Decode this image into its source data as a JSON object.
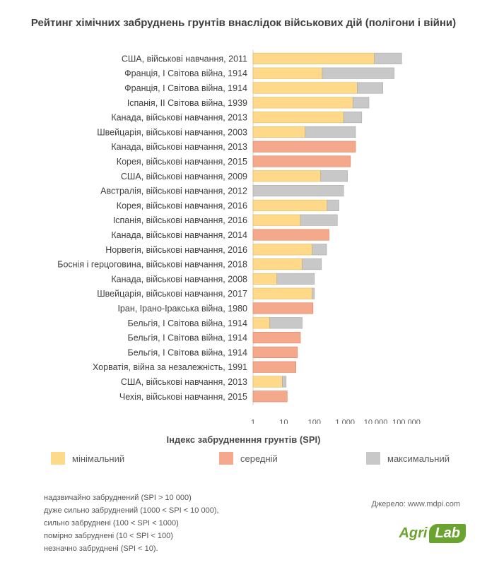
{
  "title": "Рейтинг хімічних забруднень грунтів внаслідок  військових дій (полігони і війни)",
  "colors": {
    "minimal": "#ffd98a",
    "medium": "#f4a98c",
    "maximal": "#c8c8c8",
    "axis": "#d0d0d0"
  },
  "chart_data": {
    "type": "bar",
    "orientation": "horizontal",
    "stacked": true,
    "xscale": "log",
    "xlim": [
      1,
      100000
    ],
    "xticks": [
      "1",
      "10",
      "100",
      "1,000",
      "10,000",
      "100,000"
    ],
    "xlabel": "Індекс забрудненння грунтів (SPI)",
    "categories": [
      "США, військові навчання, 2011",
      "Франція, І Світова війна, 1914",
      "Франція, І Світова війна, 1914",
      "Іспанія, ІІ Світова війна, 1939",
      "Канада, військові навчання, 2013",
      "Швейцарія, військові навчання, 2003",
      "Канада, військові навчання, 2013",
      "Корея, військові навчання, 2015",
      "США, військові навчання, 2009",
      "Австралія, військові навчання, 2012",
      "Корея, військові навчання, 2016",
      "Іспанія, військові навчання, 2016",
      "Канада, військові навчання, 2014",
      "Норвегія, військові навчання, 2016",
      "Боснія і герцоговина, військові навчання, 2018",
      "Канада, військові навчання, 2008",
      "Швейцарія, військові навчання, 2017",
      "Іран, Ірано-Іракська війна, 1980",
      "Бельгія, І Світова війна, 1914",
      "Бельгія, І Світова війна, 1914",
      "Бельгія, І Світова війна, 1914",
      "Хорватія, війна за незалежність, 1991",
      "США, військові навчання, 2013",
      "Чехія, військові навчання, 2015"
    ],
    "series": [
      {
        "name": "мінімальний",
        "values": [
          9000,
          180,
          2500,
          1800,
          900,
          50,
          null,
          null,
          160,
          null,
          260,
          35,
          null,
          85,
          40,
          6,
          85,
          null,
          3.5,
          null,
          null,
          null,
          9,
          null
        ]
      },
      {
        "name": "середній",
        "values": [
          null,
          null,
          null,
          null,
          null,
          null,
          2200,
          1500,
          null,
          null,
          null,
          null,
          300,
          null,
          null,
          null,
          null,
          90,
          null,
          35,
          28,
          25,
          null,
          13
        ]
      },
      {
        "name": "максимальний",
        "values": [
          70000,
          40000,
          17000,
          6000,
          3500,
          2200,
          null,
          null,
          1200,
          900,
          630,
          560,
          null,
          250,
          170,
          100,
          100,
          null,
          40,
          null,
          null,
          null,
          12,
          null
        ]
      }
    ]
  },
  "legend": [
    {
      "label": "мінімальний",
      "color": "#ffd98a"
    },
    {
      "label": "середній",
      "color": "#f4a98c"
    },
    {
      "label": "максимальний",
      "color": "#c8c8c8"
    }
  ],
  "notes": [
    "надзвичайно забруднений (SPI > 10 000)",
    "дуже сильно забруднений (1000 < SPI < 10 000),",
    "сильно забруднені (100 < SPI < 1000)",
    "помірно забруднені (10 < SPI < 100)",
    "незначно забруднені (SPI < 10)."
  ],
  "source": "Джерело: www.mdpi.com",
  "logo": {
    "agri": "Agri",
    "lab": "Lab"
  }
}
